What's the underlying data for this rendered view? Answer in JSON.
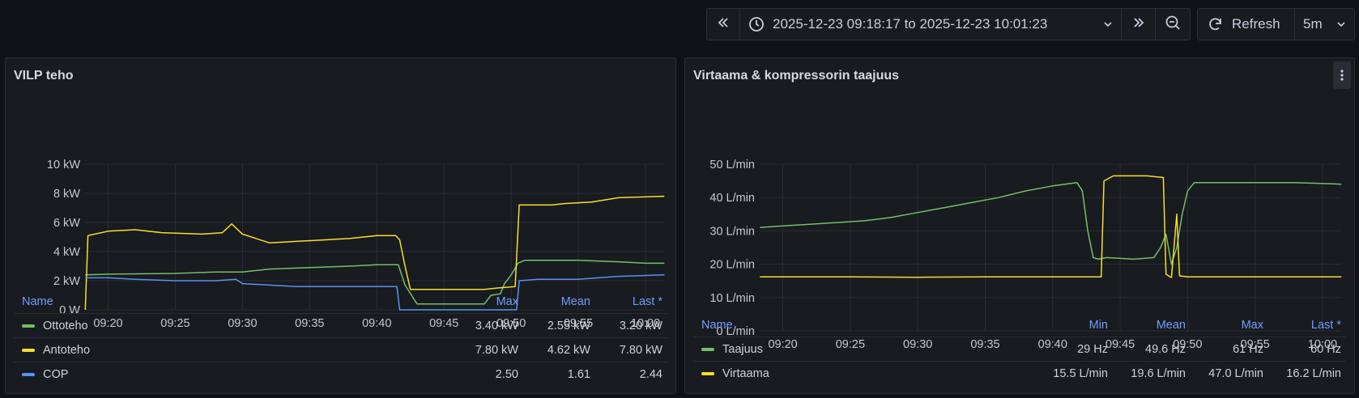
{
  "toolbar": {
    "time_range": "2025-12-23 09:18:17 to 2025-12-23 10:01:23",
    "refresh_label": "Refresh",
    "interval": "5m",
    "icons": [
      "chevrons-left-icon",
      "clock-icon",
      "chevron-down-icon",
      "chevrons-right-icon",
      "zoom-out-icon",
      "refresh-icon",
      "chevron-down-icon"
    ]
  },
  "panels": [
    {
      "title": "VILP teho",
      "chart_data": {
        "type": "line",
        "x_unit": "time",
        "x_ticks": [
          "09:20",
          "09:25",
          "09:30",
          "09:35",
          "09:40",
          "09:45",
          "09:50",
          "09:55",
          "10:00"
        ],
        "x_range": [
          "09:18:17",
          "10:01:23"
        ],
        "y_ticks": [
          "0 W",
          "2 kW",
          "4 kW",
          "6 kW",
          "8 kW",
          "10 kW"
        ],
        "ylim": [
          0,
          10
        ],
        "y_unit": "kW",
        "grid": true,
        "series": [
          {
            "name": "Ottoteho",
            "color": "#73bf69",
            "points": [
              [
                18.3,
                2.4
              ],
              [
                20,
                2.45
              ],
              [
                25,
                2.5
              ],
              [
                28,
                2.6
              ],
              [
                30,
                2.6
              ],
              [
                32,
                2.8
              ],
              [
                35,
                2.9
              ],
              [
                38,
                3.0
              ],
              [
                40,
                3.1
              ],
              [
                41.6,
                3.1
              ],
              [
                42.1,
                1.7
              ],
              [
                43,
                0.4
              ],
              [
                45,
                0.4
              ],
              [
                47,
                0.4
              ],
              [
                48,
                0.4
              ],
              [
                48.5,
                1.0
              ],
              [
                49.2,
                1.1
              ],
              [
                49.5,
                1.8
              ],
              [
                50,
                2.4
              ],
              [
                50.5,
                3.2
              ],
              [
                51,
                3.4
              ],
              [
                55,
                3.4
              ],
              [
                58,
                3.3
              ],
              [
                60,
                3.2
              ],
              [
                61.4,
                3.2
              ]
            ]
          },
          {
            "name": "Antoteho",
            "color": "#fade2a",
            "points": [
              [
                18.3,
                0.0
              ],
              [
                18.5,
                5.1
              ],
              [
                20,
                5.4
              ],
              [
                22,
                5.5
              ],
              [
                24,
                5.3
              ],
              [
                27,
                5.2
              ],
              [
                28.5,
                5.3
              ],
              [
                29.2,
                5.9
              ],
              [
                30,
                5.2
              ],
              [
                31,
                4.9
              ],
              [
                32,
                4.6
              ],
              [
                34,
                4.7
              ],
              [
                36,
                4.8
              ],
              [
                38,
                4.9
              ],
              [
                40,
                5.1
              ],
              [
                41.4,
                5.1
              ],
              [
                41.7,
                4.8
              ],
              [
                42.1,
                3.0
              ],
              [
                42.5,
                1.4
              ],
              [
                45,
                1.4
              ],
              [
                48,
                1.4
              ],
              [
                49,
                1.5
              ],
              [
                50.3,
                1.6
              ],
              [
                50.6,
                7.2
              ],
              [
                53,
                7.2
              ],
              [
                54,
                7.3
              ],
              [
                56,
                7.4
              ],
              [
                58,
                7.7
              ],
              [
                61.4,
                7.8
              ]
            ]
          },
          {
            "name": "COP",
            "color": "#5794f2",
            "points": [
              [
                18.3,
                2.2
              ],
              [
                20,
                2.2
              ],
              [
                22,
                2.1
              ],
              [
                25,
                2.0
              ],
              [
                28,
                2.0
              ],
              [
                29.5,
                2.1
              ],
              [
                30,
                1.8
              ],
              [
                32,
                1.7
              ],
              [
                34,
                1.6
              ],
              [
                38,
                1.6
              ],
              [
                41.5,
                1.6
              ],
              [
                41.7,
                0.0
              ],
              [
                45,
                0.0
              ],
              [
                48,
                0.0
              ],
              [
                50.4,
                0.0
              ],
              [
                50.6,
                2.0
              ],
              [
                52,
                2.1
              ],
              [
                55,
                2.1
              ],
              [
                58,
                2.3
              ],
              [
                61.4,
                2.4
              ]
            ]
          }
        ]
      },
      "legend": {
        "headers": {
          "name": "Name",
          "c1": "Max",
          "c2": "Mean",
          "c3": "Last *"
        },
        "rows": [
          {
            "name": "Ottoteho",
            "c1": "3.40 kW",
            "c2": "2.55 kW",
            "c3": "3.20 kW"
          },
          {
            "name": "Antoteho",
            "c1": "7.80 kW",
            "c2": "4.62 kW",
            "c3": "7.80 kW"
          },
          {
            "name": "COP",
            "c1": "2.50",
            "c2": "1.61",
            "c3": "2.44"
          }
        ]
      }
    },
    {
      "title": "Virtaama & kompressorin taajuus",
      "chart_data": {
        "type": "line",
        "x_unit": "time",
        "x_ticks": [
          "09:20",
          "09:25",
          "09:30",
          "09:35",
          "09:40",
          "09:45",
          "09:50",
          "09:55",
          "10:00"
        ],
        "x_range": [
          "09:18:17",
          "10:01:23"
        ],
        "y_ticks": [
          "0 L/min",
          "10 L/min",
          "20 L/min",
          "30 L/min",
          "40 L/min",
          "50 L/min"
        ],
        "ylim": [
          0,
          50
        ],
        "y_unit": "L/min",
        "grid": true,
        "series": [
          {
            "name": "Taajuus",
            "color": "#73bf69",
            "points": [
              [
                18.3,
                31
              ],
              [
                20,
                31.5
              ],
              [
                22,
                32
              ],
              [
                24,
                32.5
              ],
              [
                26,
                33
              ],
              [
                28,
                34
              ],
              [
                30,
                35.5
              ],
              [
                32,
                37
              ],
              [
                34,
                38.5
              ],
              [
                36,
                40
              ],
              [
                38,
                42
              ],
              [
                40,
                43.5
              ],
              [
                41.8,
                44.5
              ],
              [
                42.2,
                42
              ],
              [
                42.6,
                30
              ],
              [
                43,
                22
              ],
              [
                43.4,
                21.5
              ],
              [
                44,
                22
              ],
              [
                46,
                21.5
              ],
              [
                47.5,
                22
              ],
              [
                48,
                25
              ],
              [
                48.4,
                29
              ],
              [
                48.8,
                20
              ],
              [
                49.2,
                25
              ],
              [
                49.6,
                35
              ],
              [
                50,
                42
              ],
              [
                50.5,
                44.5
              ],
              [
                54,
                44.5
              ],
              [
                58,
                44.5
              ],
              [
                61.4,
                44
              ]
            ]
          },
          {
            "name": "Virtaama",
            "color": "#fade2a",
            "points": [
              [
                18.3,
                16.2
              ],
              [
                25,
                16.2
              ],
              [
                30,
                16.1
              ],
              [
                35,
                16.2
              ],
              [
                40,
                16.2
              ],
              [
                43.6,
                16.2
              ],
              [
                43.8,
                45
              ],
              [
                44.5,
                46.5
              ],
              [
                47,
                46.5
              ],
              [
                48.2,
                46
              ],
              [
                48.4,
                17
              ],
              [
                48.8,
                16
              ],
              [
                49.2,
                35
              ],
              [
                49.4,
                16.5
              ],
              [
                50,
                16.2
              ],
              [
                55,
                16.2
              ],
              [
                61.4,
                16.2
              ]
            ]
          }
        ]
      },
      "legend": {
        "headers": {
          "name": "Name",
          "c0": "Min",
          "c1": "Mean",
          "c2": "Max",
          "c3": "Last *"
        },
        "rows": [
          {
            "name": "Taajuus",
            "c0": "29 Hz",
            "c1": "49.6 Hz",
            "c2": "61 Hz",
            "c3": "60 Hz"
          },
          {
            "name": "Virtaama",
            "c0": "15.5 L/min",
            "c1": "19.6 L/min",
            "c2": "47.0 L/min",
            "c3": "16.2 L/min"
          }
        ]
      }
    }
  ]
}
